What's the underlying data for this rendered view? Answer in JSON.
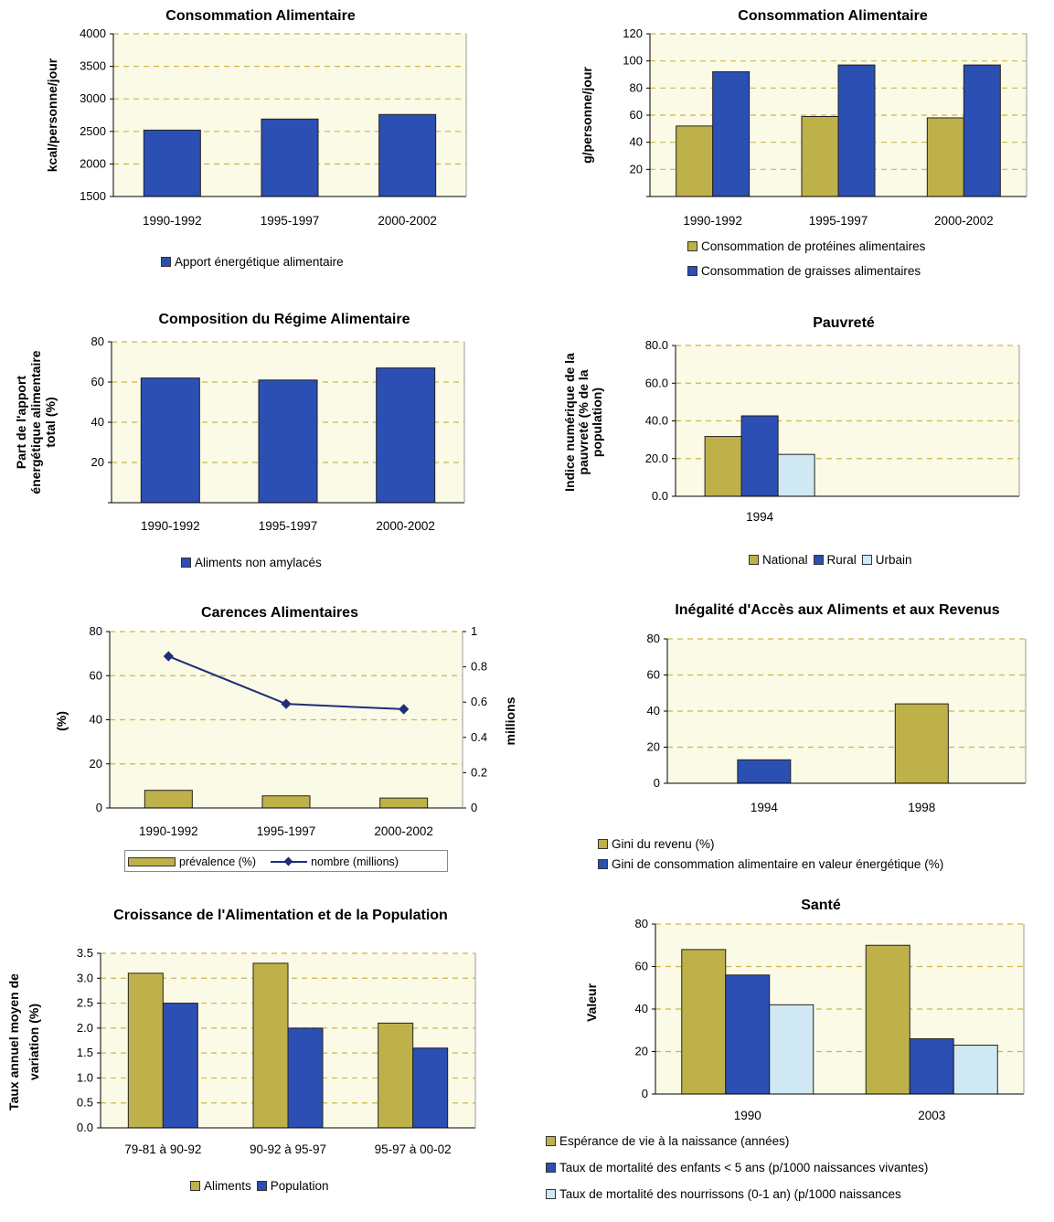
{
  "colors": {
    "olive": "#bfb14a",
    "blue": "#2b4fb2",
    "light_blue": "#cfe8f4",
    "plot_bg": "#fbfae6",
    "grid": "#c9b84a",
    "line": "#1f2d7a"
  },
  "chart_data": [
    {
      "id": "c1",
      "type": "bar",
      "title": "Consommation Alimentaire",
      "ylabel": "kcal/personne/jour",
      "categories": [
        "1990-1992",
        "1995-1997",
        "2000-2002"
      ],
      "ylim": [
        1500,
        4000
      ],
      "yticks": [
        "1500",
        "2000",
        "2500",
        "3000",
        "3500",
        "4000"
      ],
      "series": [
        {
          "name": "Apport énergétique alimentaire",
          "color": "blue",
          "values": [
            2520,
            2690,
            2760
          ]
        }
      ],
      "legend_items": [
        {
          "label": "Apport énergétique alimentaire",
          "color": "blue"
        }
      ]
    },
    {
      "id": "c2",
      "type": "bar",
      "title": "Consommation Alimentaire",
      "ylabel": "g/personne/jour",
      "categories": [
        "1990-1992",
        "1995-1997",
        "2000-2002"
      ],
      "ylim": [
        0,
        120
      ],
      "yticks": [
        "",
        "20",
        "40",
        "60",
        "80",
        "100",
        "120"
      ],
      "series": [
        {
          "name": "Consommation de protéines alimentaires",
          "color": "olive",
          "values": [
            52,
            59,
            58
          ]
        },
        {
          "name": "Consommation de graisses alimentaires",
          "color": "blue",
          "values": [
            92,
            97,
            97
          ]
        }
      ],
      "legend_items": [
        {
          "label": "Consommation de protéines alimentaires",
          "color": "olive"
        },
        {
          "label": "Consommation de graisses alimentaires",
          "color": "blue"
        }
      ]
    },
    {
      "id": "c3",
      "type": "bar",
      "title": "Composition du Régime Alimentaire",
      "ylabel_lines": [
        "Part de l'apport",
        "énergétique alimentaire",
        "total (%)"
      ],
      "categories": [
        "1990-1992",
        "1995-1997",
        "2000-2002"
      ],
      "ylim": [
        0,
        80
      ],
      "yticks": [
        "",
        "20",
        "40",
        "60",
        "80"
      ],
      "series": [
        {
          "name": "Aliments non amylacés",
          "color": "blue",
          "values": [
            62,
            61,
            67
          ]
        }
      ],
      "legend_items": [
        {
          "label": "Aliments non amylacés",
          "color": "blue"
        }
      ]
    },
    {
      "id": "c4",
      "type": "bar",
      "title": "Pauvreté",
      "ylabel_lines": [
        "Indice numérique de la",
        "pauvreté (% de la",
        "population)"
      ],
      "categories": [
        "1994"
      ],
      "ylim": [
        0,
        90
      ],
      "yticks": [
        "0.0",
        "20.0",
        "40.0",
        "60.0",
        "80.0"
      ],
      "series": [
        {
          "name": "National",
          "color": "olive",
          "values": [
            35.7
          ]
        },
        {
          "name": "Rural",
          "color": "blue",
          "values": [
            48
          ]
        },
        {
          "name": "Urbain",
          "color": "light_blue",
          "values": [
            25
          ]
        }
      ],
      "legend_items": [
        {
          "label": "National",
          "color": "olive"
        },
        {
          "label": "Rural",
          "color": "blue"
        },
        {
          "label": "Urbain",
          "color": "light_blue"
        }
      ]
    },
    {
      "id": "c5",
      "type": "bar+line",
      "title": "Carences Alimentaires",
      "ylabel": "(%)",
      "y2label": "millions",
      "categories": [
        "1990-1992",
        "1995-1997",
        "2000-2002"
      ],
      "ylim": [
        0,
        80
      ],
      "y2lim": [
        0,
        1
      ],
      "yticks": [
        "0",
        "20",
        "40",
        "60",
        "80"
      ],
      "y2ticks": [
        "0",
        "0.2",
        "0.4",
        "0.6",
        "0.8",
        "1"
      ],
      "series": [
        {
          "name": "prévalence (%)",
          "color": "olive",
          "values": [
            8,
            5.5,
            4.5
          ]
        },
        {
          "name": "nombre (millions)",
          "color": "line",
          "axis": "right",
          "values": [
            0.86,
            0.59,
            0.56
          ]
        }
      ],
      "legend_items": [
        {
          "label": "prévalence (%)",
          "color": "olive"
        },
        {
          "label": "nombre (millions)",
          "color": "line"
        }
      ]
    },
    {
      "id": "c6",
      "type": "bar",
      "title": "Inégalité d'Accès aux Aliments et aux Revenus",
      "categories": [
        "1994",
        "1998"
      ],
      "ylim": [
        0,
        80
      ],
      "yticks": [
        "0",
        "20",
        "40",
        "60",
        "80"
      ],
      "series": [
        {
          "name": "Gini du revenu (%)",
          "color": "olive",
          "values": [
            null,
            44
          ]
        },
        {
          "name": "Gini de consommation alimentaire en valeur énergétique (%)",
          "color": "blue",
          "values": [
            13,
            null
          ]
        }
      ],
      "legend_items": [
        {
          "label": "Gini du revenu (%)",
          "color": "olive"
        },
        {
          "label": "Gini de consommation alimentaire en valeur énergétique (%)",
          "color": "blue"
        }
      ]
    },
    {
      "id": "c7",
      "type": "bar",
      "title": "Croissance de l'Alimentation et de la Population",
      "ylabel_lines": [
        "Taux annuel moyen de",
        "variation (%)"
      ],
      "categories": [
        "79-81 à 90-92",
        "90-92 à 95-97",
        "95-97 à 00-02"
      ],
      "ylim": [
        0,
        3.5
      ],
      "yticks": [
        "0.0",
        "0.5",
        "1.0",
        "1.5",
        "2.0",
        "2.5",
        "3.0",
        "3.5"
      ],
      "series": [
        {
          "name": "Aliments",
          "color": "olive",
          "values": [
            3.1,
            3.3,
            2.1
          ]
        },
        {
          "name": "Population",
          "color": "blue",
          "values": [
            2.5,
            2.0,
            1.6
          ]
        }
      ],
      "legend_items": [
        {
          "label": "Aliments",
          "color": "olive"
        },
        {
          "label": "Population",
          "color": "blue"
        }
      ]
    },
    {
      "id": "c8",
      "type": "bar",
      "title": "Santé",
      "ylabel": "Valeur",
      "categories": [
        "1990",
        "2003"
      ],
      "ylim": [
        0,
        80
      ],
      "yticks": [
        "0",
        "20",
        "40",
        "60",
        "80"
      ],
      "series": [
        {
          "name": "Espérance de vie à la naissance (années)",
          "color": "olive",
          "values": [
            68,
            70
          ]
        },
        {
          "name": "Taux de mortalité des enfants < 5 ans (p/1000 naissances vivantes)",
          "color": "blue",
          "values": [
            56,
            26
          ]
        },
        {
          "name": "Taux de mortalité des nourrissons (0-1 an) (p/1000 naissances",
          "color": "light_blue",
          "values": [
            42,
            23
          ]
        }
      ],
      "legend_items": [
        {
          "label": "Espérance de vie à la naissance (années)",
          "color": "olive"
        },
        {
          "label": "Taux de mortalité des enfants < 5 ans (p/1000 naissances vivantes)",
          "color": "blue"
        },
        {
          "label": "Taux de mortalité des nourrissons (0-1 an) (p/1000 naissances",
          "color": "light_blue"
        }
      ]
    }
  ]
}
